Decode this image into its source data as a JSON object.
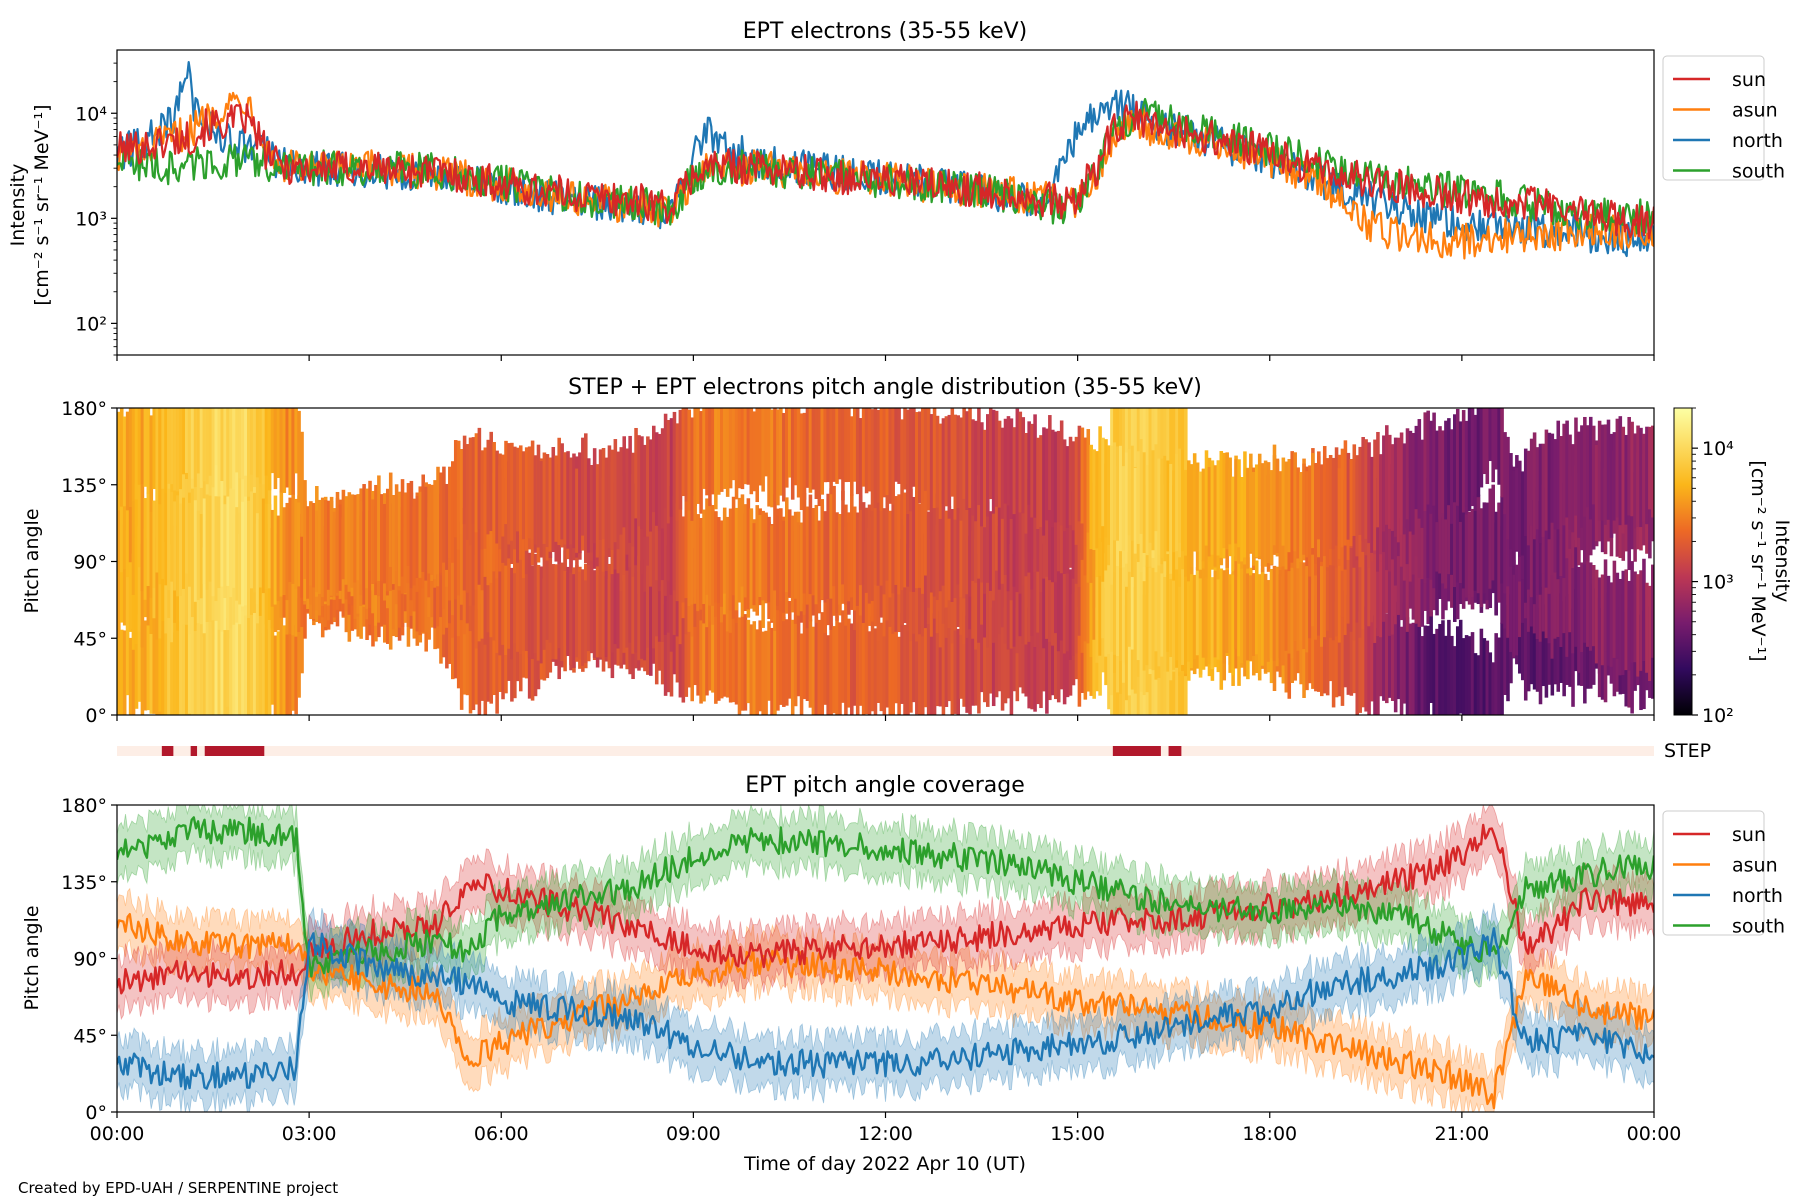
{
  "chart_data": [
    {
      "type": "line",
      "title": "EPT electrons (35-55 keV)",
      "ylabel_line1": "Intensity",
      "ylabel_line2": "[cm⁻² s⁻¹ sr⁻¹ MeV⁻¹]",
      "yscale": "log",
      "ylim": [
        50,
        40000
      ],
      "y_ticks": [
        {
          "value": 100,
          "label": "10²"
        },
        {
          "value": 1000,
          "label": "10³"
        },
        {
          "value": 10000,
          "label": "10⁴"
        }
      ],
      "xlim_hours": [
        0,
        24
      ],
      "legend_position": "outside-right",
      "series": [
        {
          "name": "sun",
          "color": "#d62728",
          "x": [
            0,
            0.5,
            0.9,
            1.2,
            1.4,
            1.7,
            2.0,
            2.3,
            2.5,
            3,
            4,
            5,
            6,
            7,
            8,
            8.7,
            9.0,
            9.3,
            10,
            11,
            12,
            13,
            14,
            14.8,
            15.0,
            15.3,
            15.6,
            15.9,
            16.2,
            17,
            18,
            19,
            20,
            21,
            22,
            23,
            24
          ],
          "y": [
            4500,
            5000,
            5500,
            6000,
            7500,
            8000,
            9000,
            4500,
            3200,
            3000,
            3000,
            2800,
            2100,
            1700,
            1500,
            1300,
            2600,
            3200,
            3100,
            2600,
            2300,
            2000,
            1700,
            1400,
            1500,
            3000,
            7000,
            9000,
            7500,
            6000,
            4000,
            2600,
            2000,
            1600,
            1400,
            1100,
            900
          ]
        },
        {
          "name": "asun",
          "color": "#ff7f0e",
          "x": [
            0,
            0.5,
            0.9,
            1.2,
            1.4,
            1.7,
            2.0,
            2.3,
            2.5,
            3,
            4,
            5,
            6,
            7,
            8,
            8.7,
            9.0,
            9.3,
            10,
            11,
            12,
            13,
            14,
            14.8,
            15.0,
            15.3,
            15.6,
            15.9,
            16.2,
            17,
            18,
            19,
            19.5,
            20,
            21,
            22,
            22.5,
            23,
            24
          ],
          "y": [
            4000,
            4500,
            6000,
            7000,
            9000,
            12000,
            14000,
            5000,
            3200,
            3000,
            3000,
            2700,
            2100,
            1600,
            1300,
            1200,
            2400,
            3000,
            3000,
            2600,
            2300,
            2000,
            1700,
            1400,
            1500,
            2600,
            6500,
            8500,
            7000,
            5500,
            3500,
            1800,
            900,
            700,
            600,
            700,
            700,
            800,
            700
          ]
        },
        {
          "name": "north",
          "color": "#1f77b4",
          "x": [
            0,
            0.5,
            0.9,
            1.0,
            1.1,
            1.2,
            1.4,
            1.7,
            2.0,
            2.3,
            2.5,
            3,
            4,
            5,
            6,
            7,
            8,
            8.7,
            9.0,
            9.2,
            9.4,
            10,
            11,
            12,
            13,
            14,
            14.3,
            14.6,
            14.9,
            15.2,
            15.5,
            15.8,
            16.2,
            17,
            18,
            19,
            20,
            21,
            22,
            23,
            24
          ],
          "y": [
            4000,
            5500,
            9000,
            18000,
            24000,
            12000,
            8000,
            5500,
            5000,
            4500,
            3200,
            3000,
            2900,
            2600,
            2000,
            1500,
            1300,
            1100,
            3500,
            6500,
            5000,
            3500,
            2900,
            2400,
            2000,
            1600,
            1500,
            1800,
            5000,
            9000,
            13000,
            11000,
            8000,
            5500,
            3500,
            2000,
            1200,
            900,
            800,
            700,
            600
          ]
        },
        {
          "name": "south",
          "color": "#2ca02c",
          "x": [
            0,
            0.5,
            0.9,
            1.2,
            1.5,
            1.8,
            2.0,
            2.3,
            2.5,
            3,
            4,
            5,
            6,
            7,
            8,
            8.7,
            9.0,
            9.3,
            10,
            11,
            12,
            13,
            14,
            14.8,
            15.0,
            15.3,
            15.6,
            16.0,
            16.4,
            17,
            18,
            19,
            20,
            21,
            22,
            23,
            24
          ],
          "y": [
            3800,
            3200,
            3000,
            3300,
            3500,
            3500,
            3400,
            3300,
            3000,
            3000,
            3000,
            2800,
            2200,
            1600,
            1400,
            1200,
            2500,
            3100,
            3000,
            2600,
            2300,
            2000,
            1600,
            1200,
            1500,
            2800,
            7000,
            9500,
            9000,
            7000,
            4500,
            3000,
            2200,
            1800,
            1400,
            1100,
            1000
          ]
        }
      ]
    },
    {
      "type": "heatmap",
      "title": "STEP + EPT electrons pitch angle distribution (35-55 keV)",
      "ylabel": "Pitch angle",
      "ylim": [
        0,
        180
      ],
      "y_ticks": [
        "0°",
        "45°",
        "90°",
        "135°",
        "180°"
      ],
      "xlim_hours": [
        0,
        24
      ],
      "colorbar": {
        "label": "Intensity",
        "units": "[cm⁻² s⁻¹ sr⁻¹ MeV⁻¹]",
        "scale": "log",
        "range": [
          100,
          20000
        ],
        "ticks": [
          {
            "value": 100,
            "label": "10²"
          },
          {
            "value": 1000,
            "label": "10³"
          },
          {
            "value": 10000,
            "label": "10⁴"
          }
        ],
        "colormap": "inferno"
      },
      "intensity_profile": {
        "x": [
          0,
          0.5,
          1.0,
          1.5,
          2.0,
          2.3,
          2.6,
          3,
          4,
          5,
          6,
          7,
          8,
          8.7,
          9.0,
          9.5,
          10,
          11,
          12,
          13,
          14,
          14.8,
          15.0,
          15.5,
          16.0,
          16.5,
          17,
          18,
          19,
          19.8,
          20.5,
          21,
          22,
          23,
          24
        ],
        "y": [
          4500,
          5000,
          7000,
          10000,
          10000,
          6000,
          3500,
          3000,
          2800,
          2500,
          2000,
          1600,
          1400,
          1300,
          2500,
          3000,
          2800,
          2300,
          1900,
          1600,
          1300,
          1200,
          1500,
          8000,
          9000,
          6500,
          5000,
          3500,
          2200,
          900,
          500,
          450,
          500,
          600,
          700
        ]
      }
    },
    {
      "type": "timeline",
      "label": "STEP",
      "xlim_hours": [
        0,
        24
      ],
      "active_intervals_hours": [
        [
          0.7,
          0.88
        ],
        [
          1.15,
          1.25
        ],
        [
          1.37,
          2.3
        ],
        [
          15.55,
          16.3
        ],
        [
          16.42,
          16.62
        ]
      ],
      "colors": {
        "active": "#b2182b",
        "inactive": "#fdeee6"
      }
    },
    {
      "type": "line",
      "title": "EPT pitch angle coverage",
      "ylabel": "Pitch angle",
      "ylim": [
        0,
        180
      ],
      "y_ticks": [
        "0°",
        "45°",
        "90°",
        "135°",
        "180°"
      ],
      "xlim_hours": [
        0,
        24
      ],
      "xlabel": "Time of day 2022 Apr 10 (UT)",
      "x_ticks": [
        "00:00",
        "03:00",
        "06:00",
        "09:00",
        "12:00",
        "15:00",
        "18:00",
        "21:00",
        "00:00"
      ],
      "legend_position": "outside-right",
      "band_halfwidth_deg": 15,
      "series": [
        {
          "name": "sun",
          "color": "#d62728",
          "x": [
            0,
            1,
            2,
            2.8,
            3,
            4,
            5,
            5.5,
            6,
            7,
            8,
            9,
            10,
            11,
            12,
            13,
            14,
            15,
            16,
            17,
            18,
            19,
            20,
            21,
            21.5,
            22,
            23,
            24
          ],
          "y": [
            75,
            82,
            80,
            82,
            95,
            105,
            110,
            135,
            130,
            120,
            110,
            95,
            92,
            95,
            98,
            100,
            105,
            110,
            112,
            115,
            120,
            125,
            135,
            150,
            170,
            95,
            125,
            120
          ]
        },
        {
          "name": "asun",
          "color": "#ff7f0e",
          "x": [
            0,
            1,
            2,
            2.8,
            3,
            4,
            5,
            5.5,
            6,
            7,
            8,
            9,
            10,
            11,
            12,
            13,
            14,
            15,
            16,
            17,
            18,
            19,
            20,
            21,
            21.5,
            22,
            23,
            24
          ],
          "y": [
            110,
            100,
            98,
            100,
            85,
            75,
            70,
            30,
            40,
            55,
            65,
            80,
            88,
            85,
            82,
            78,
            72,
            65,
            60,
            55,
            50,
            40,
            30,
            20,
            10,
            80,
            60,
            55
          ]
        },
        {
          "name": "north",
          "color": "#1f77b4",
          "x": [
            0,
            1,
            2,
            2.8,
            3,
            4,
            5,
            5.5,
            6,
            7,
            8,
            9,
            10,
            11,
            12,
            13,
            14,
            15,
            16,
            17,
            18,
            19,
            20,
            21,
            21.5,
            22,
            23,
            24
          ],
          "y": [
            30,
            20,
            22,
            25,
            100,
            85,
            80,
            75,
            65,
            60,
            55,
            40,
            30,
            28,
            28,
            30,
            35,
            40,
            45,
            55,
            60,
            75,
            80,
            90,
            100,
            40,
            45,
            35
          ]
        },
        {
          "name": "south",
          "color": "#2ca02c",
          "x": [
            0,
            1,
            2,
            2.8,
            3,
            4,
            5,
            5.5,
            6,
            7,
            8,
            9,
            10,
            11,
            12,
            13,
            14,
            15,
            16,
            17,
            18,
            19,
            20,
            21,
            21.5,
            22,
            23,
            24
          ],
          "y": [
            150,
            165,
            165,
            160,
            85,
            95,
            100,
            95,
            115,
            125,
            130,
            150,
            160,
            158,
            155,
            150,
            145,
            135,
            125,
            120,
            118,
            120,
            115,
            100,
            90,
            130,
            140,
            145
          ]
        }
      ]
    }
  ],
  "footer": "Created by EPD-UAH / SERPENTINE project"
}
